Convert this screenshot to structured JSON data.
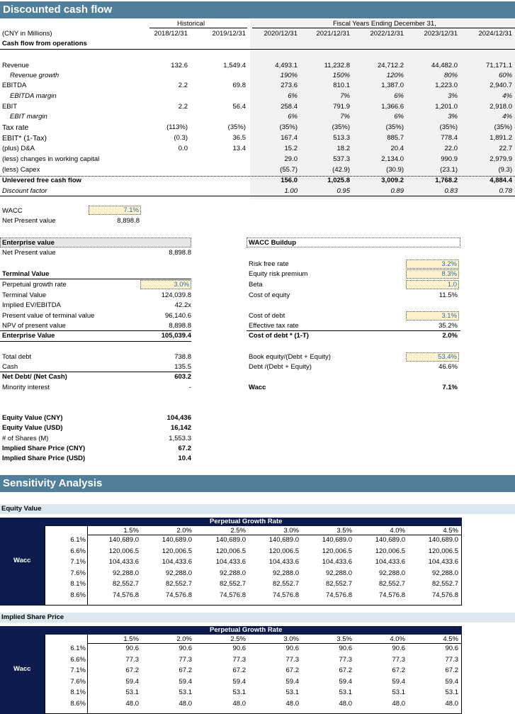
{
  "dcf": {
    "title": "Discounted cash flow",
    "historical_label": "Historical",
    "fiscal_label": "Fiscal Years Ending December 31,",
    "units_label": "(CNY in Millions)",
    "section_label": "Cash flow from operations",
    "years": [
      "2018/12/31",
      "2019/12/31",
      "2020/12/31",
      "2021/12/31",
      "2022/12/31",
      "2023/12/31",
      "2024/12/31"
    ],
    "rows": [
      {
        "label": "Revenue",
        "values": [
          "132.6",
          "1,549.4",
          "4,493.1",
          "11,232.8",
          "24,712.2",
          "44,482.0",
          "71,171.1"
        ]
      },
      {
        "label": "Revenue growth",
        "values": [
          "",
          "",
          "190%",
          "150%",
          "120%",
          "80%",
          "60%"
        ]
      },
      {
        "label": "EBITDA",
        "values": [
          "2.2",
          "69.8",
          "273.6",
          "810.1",
          "1,387.0",
          "1,223.0",
          "2,940.7"
        ]
      },
      {
        "label": "EBITDA margin",
        "values": [
          "",
          "",
          "6%",
          "7%",
          "6%",
          "3%",
          "4%"
        ]
      },
      {
        "label": "EBIT",
        "values": [
          "2.2",
          "56.4",
          "258.4",
          "791.9",
          "1,366.6",
          "1,201.0",
          "2,918.0"
        ]
      },
      {
        "label": "EBIT margin",
        "values": [
          "",
          "",
          "6%",
          "7%",
          "6%",
          "3%",
          "4%"
        ]
      },
      {
        "label": "Tax rate",
        "values": [
          "(113%)",
          "(35%)",
          "(35%)",
          "(35%)",
          "(35%)",
          "(35%)",
          "(35%)"
        ]
      },
      {
        "label": "EBIT* (1-Tax)",
        "values": [
          "(0.3)",
          "36.5",
          "167.4",
          "513.3",
          "885.7",
          "778.4",
          "1,891.2"
        ]
      },
      {
        "label": "(plus) D&A",
        "values": [
          "0.0",
          "13.4",
          "15.2",
          "18.2",
          "20.4",
          "22.0",
          "22.7"
        ]
      },
      {
        "label": "(less) changes in working capital",
        "values": [
          "",
          "",
          "29.0",
          "537.3",
          "2,134.0",
          "990.9",
          "2,979.9"
        ]
      },
      {
        "label": "(less) Capex",
        "values": [
          "",
          "",
          "(55.7)",
          "(42.9)",
          "(30.9)",
          "(23.1)",
          "(9.3)"
        ]
      },
      {
        "label": "Unlevered free cash flow",
        "values": [
          "",
          "",
          "156.0",
          "1,025.8",
          "3,009.2",
          "1,768.2",
          "4,884.4"
        ]
      },
      {
        "label": "Discount factor",
        "values": [
          "",
          "",
          "1.00",
          "0.95",
          "0.89",
          "0.83",
          "0.78"
        ]
      }
    ],
    "wacc_label": "WACC",
    "wacc_value": "7.1%",
    "npv_label": "Net Present value",
    "npv_value": "8,898.8"
  },
  "ev": {
    "title": "Enterprise value",
    "npv_label": "Net Present value",
    "npv_value": "8,898.8",
    "tv_title": "Terminal Value",
    "pgr_label": "Perpetual growth rate",
    "pgr_value": "3.0%",
    "tv_label": "Terminal Value",
    "tv_value": "124,039.8",
    "ev_ebitda_label": "Implied EV/EBITDA",
    "ev_ebitda_value": "42.2x",
    "pv_tv_label": "Present value of terminal value",
    "pv_tv_value": "96,140.6",
    "npv_pv_label": "NPV of present value",
    "npv_pv_value": "8,898.8",
    "ev_label": "Enterprise Value",
    "ev_value": "105,039.4",
    "debt_label": "Total debt",
    "debt_value": "738.8",
    "cash_label": "Cash",
    "cash_value": "135.5",
    "netdebt_label": "Net Debt/ (Net Cash)",
    "netdebt_value": "603.2",
    "minority_label": "Minority interest",
    "minority_value": "-",
    "eq_cny_label": "Equity Value (CNY)",
    "eq_cny_value": "104,436",
    "eq_usd_label": "Equity Value (USD)",
    "eq_usd_value": "16,142",
    "shares_label": "# of Shares (M)",
    "shares_value": "1,553.3",
    "price_cny_label": "Implied Share Price (CNY)",
    "price_cny_value": "67.2",
    "price_usd_label": "Implied Share Price (USD)",
    "price_usd_value": "10.4"
  },
  "wacc": {
    "title": "WACC Buildup",
    "rf_label": "Risk free rate",
    "rf_value": "3.2%",
    "erp_label": "Equity risk premium",
    "erp_value": "8.3%",
    "beta_label": "Beta",
    "beta_value": "1.0",
    "coe_label": "Cost of equity",
    "coe_value": "11.5%",
    "cod_label": "Cost of debt",
    "cod_value": "3.1%",
    "etr_label": "Effective tax rate",
    "etr_value": "35.2%",
    "codt_label": "Cost of debt * (1-T)",
    "codt_value": "2.0%",
    "be_label": "Book equity/(Debt + Equity)",
    "be_value": "53.4%",
    "de_label": "Debt /(Debt + Equity)",
    "de_value": "46.6%",
    "wacc_label": "Wacc",
    "wacc_value": "7.1%"
  },
  "sensitivity": {
    "title": "Sensitivity Analysis",
    "row_axis_label": "Wacc",
    "col_axis_label": "Perpetual Growth Rate",
    "growth_rates": [
      "1.5%",
      "2.0%",
      "2.5%",
      "3.0%",
      "3.5%",
      "4.0%",
      "4.5%"
    ],
    "waccs": [
      "6.1%",
      "6.6%",
      "7.1%",
      "7.6%",
      "8.1%",
      "8.6%"
    ],
    "equity": {
      "title": "Equity Value",
      "values": [
        "140,689.0",
        "120,006.5",
        "104,433.6",
        "92,288.0",
        "82,552.7",
        "74,576.8"
      ]
    },
    "price": {
      "title": "Implied Share Price",
      "values": [
        "90.6",
        "77.3",
        "67.2",
        "59.4",
        "53.1",
        "48.0"
      ]
    }
  }
}
